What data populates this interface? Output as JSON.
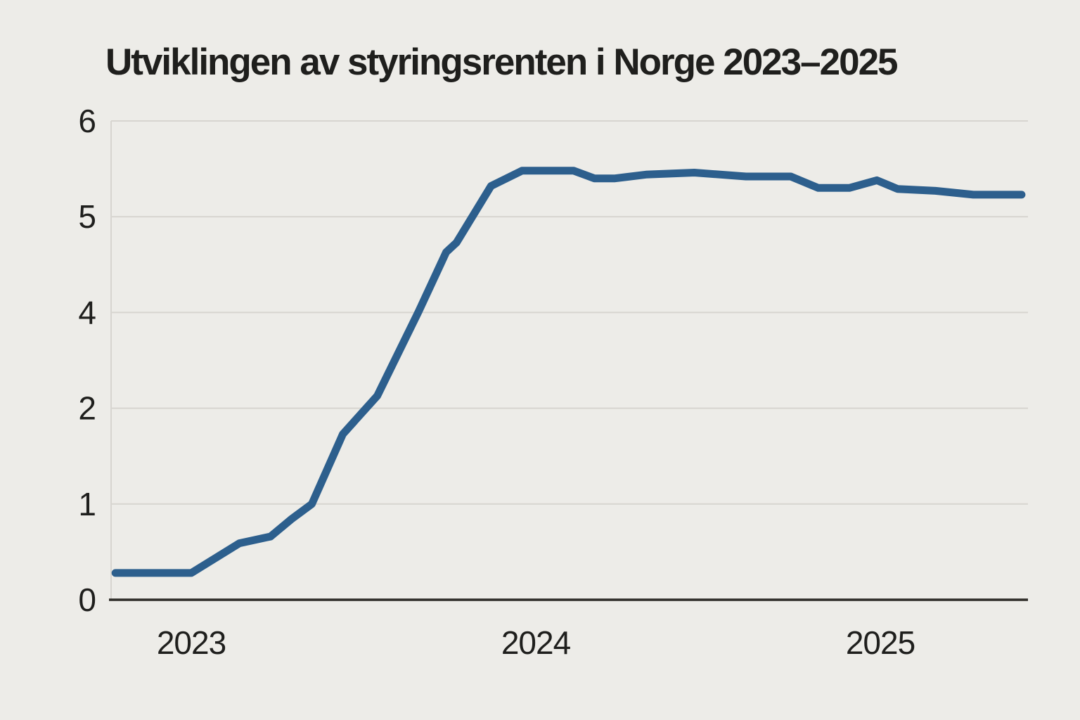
{
  "page": {
    "background_color": "#edece8"
  },
  "chart_data": {
    "type": "line",
    "title": "Utviklingen av styringsrenten i Norge 2023–2025",
    "title_color": "#1f1f1d",
    "line_color": "#2d5f8d",
    "grid_color": "#d7d5d0",
    "axis_color": "#2e2c28",
    "label_color": "#1f1f1d",
    "legend": "none",
    "grid": "horizontal-only",
    "x_axis": {
      "tick_labels": [
        "2023",
        "2024",
        "2025"
      ],
      "tick_values": [
        2023,
        2024,
        2025
      ]
    },
    "y_axis": {
      "tick_labels": [
        "6",
        "5",
        "4",
        "2",
        "1",
        "0"
      ],
      "tick_values": [
        6,
        5,
        4,
        2,
        1,
        0
      ]
    },
    "series": [
      {
        "points": [
          [
            2022.78,
            0.28
          ],
          [
            2023.0,
            0.28
          ],
          [
            2023.14,
            0.59
          ],
          [
            2023.23,
            0.66
          ],
          [
            2023.29,
            0.84
          ],
          [
            2023.35,
            1.0
          ],
          [
            2023.44,
            1.73
          ],
          [
            2023.54,
            2.26
          ],
          [
            2023.66,
            4.01
          ],
          [
            2023.74,
            4.63
          ],
          [
            2023.77,
            4.73
          ],
          [
            2023.87,
            5.32
          ],
          [
            2023.96,
            5.48
          ],
          [
            2024.11,
            5.48
          ],
          [
            2024.17,
            5.4
          ],
          [
            2024.23,
            5.4
          ],
          [
            2024.32,
            5.44
          ],
          [
            2024.46,
            5.46
          ],
          [
            2024.61,
            5.42
          ],
          [
            2024.74,
            5.42
          ],
          [
            2024.82,
            5.3
          ],
          [
            2024.91,
            5.3
          ],
          [
            2024.99,
            5.38
          ],
          [
            2025.05,
            5.29
          ],
          [
            2025.16,
            5.27
          ],
          [
            2025.27,
            5.23
          ],
          [
            2025.41,
            5.23
          ]
        ]
      }
    ]
  }
}
